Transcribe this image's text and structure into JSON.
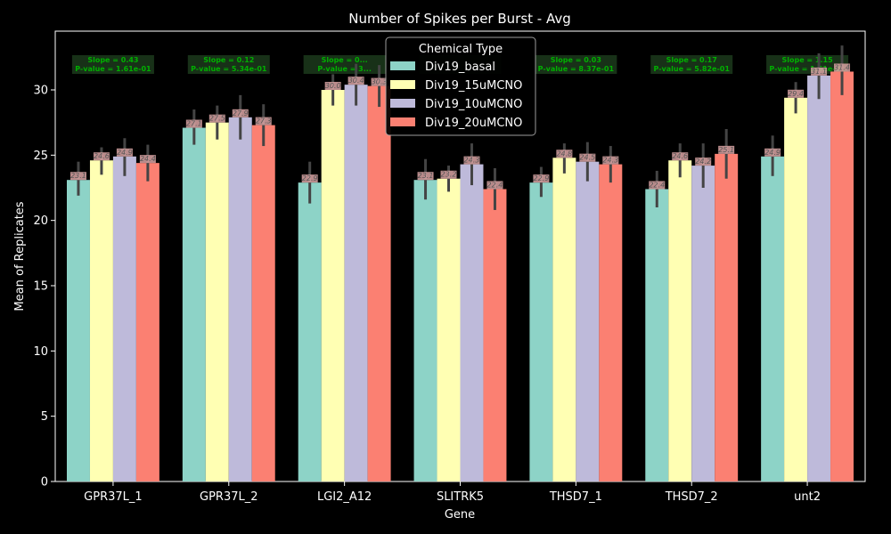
{
  "chart_data": {
    "type": "bar",
    "title": "Number of Spikes per Burst - Avg",
    "xlabel": "Gene",
    "ylabel": "Mean of Replicates",
    "ylim": [
      0,
      34.5
    ],
    "yticks": [
      0,
      5,
      10,
      15,
      20,
      25,
      30
    ],
    "categories": [
      "GPR37L_1",
      "GPR37L_2",
      "LGI2_A12",
      "SLITRK5",
      "THSD7_1",
      "THSD7_2",
      "unt2"
    ],
    "legend": {
      "title": "Chemical Type",
      "placement": "top-center"
    },
    "series": [
      {
        "name": "Div19_basal",
        "color": "#8dd3c7",
        "values": [
          23.1,
          27.1,
          22.9,
          23.1,
          22.9,
          22.4,
          24.9
        ],
        "err_low": [
          21.9,
          25.8,
          21.3,
          21.6,
          21.8,
          21.0,
          23.4
        ],
        "err_high": [
          24.5,
          28.5,
          24.5,
          24.7,
          24.1,
          23.8,
          26.5
        ],
        "labels": [
          "23.1",
          "27.1",
          "22.9",
          "23.1",
          "22.9",
          "22.4",
          "24.9"
        ]
      },
      {
        "name": "Div19_15uMCNO",
        "color": "#ffffb3",
        "values": [
          24.6,
          27.5,
          30.0,
          23.2,
          24.8,
          24.6,
          29.4
        ],
        "err_low": [
          23.5,
          26.2,
          28.8,
          22.2,
          23.6,
          23.3,
          28.2
        ],
        "err_high": [
          25.6,
          28.8,
          31.2,
          24.2,
          25.9,
          25.9,
          30.6
        ],
        "labels": [
          "24.6",
          "27.5",
          "30.0",
          "23.2",
          "24.8",
          "24.6",
          "29.4"
        ]
      },
      {
        "name": "Div19_10uMCNO",
        "color": "#bebada",
        "values": [
          24.9,
          27.9,
          30.4,
          24.3,
          24.5,
          24.2,
          31.1
        ],
        "err_low": [
          23.4,
          26.2,
          28.8,
          22.7,
          23.0,
          22.5,
          29.3
        ],
        "err_high": [
          26.3,
          29.6,
          32.0,
          25.9,
          26.0,
          25.9,
          32.8
        ],
        "labels": [
          "24.9",
          "27.9",
          "30.4",
          "24.3",
          "24.5",
          "24.2",
          "31.1"
        ]
      },
      {
        "name": "Div19_20uMCNO",
        "color": "#fb8072",
        "values": [
          24.4,
          27.3,
          30.3,
          22.4,
          24.3,
          25.1,
          31.4
        ],
        "err_low": [
          23.0,
          25.7,
          28.7,
          20.8,
          22.9,
          23.2,
          29.6
        ],
        "err_high": [
          25.8,
          28.9,
          31.9,
          24.0,
          25.7,
          27.0,
          33.4
        ],
        "labels": [
          "24.4",
          "27.3",
          "30.3",
          "22.4",
          "24.3",
          "25.1",
          "31.4"
        ]
      }
    ],
    "annotations": [
      {
        "line1": "Slope = 0.43",
        "line2": "P-value = 1.61e-01"
      },
      {
        "line1": "Slope = 0.12",
        "line2": "P-value = 5.34e-01"
      },
      {
        "line1": "Slope = 0...",
        "line2": "P-value = 3..."
      },
      {
        "line1": "",
        "line2": ""
      },
      {
        "line1": "Slope = 0.03",
        "line2": "P-value = 8.37e-01"
      },
      {
        "line1": "Slope = 0.17",
        "line2": "P-value = 5.82e-01"
      },
      {
        "line1": "Slope = 1.15",
        "line2": "P-value = 1.61e-01"
      }
    ],
    "grid": false
  }
}
